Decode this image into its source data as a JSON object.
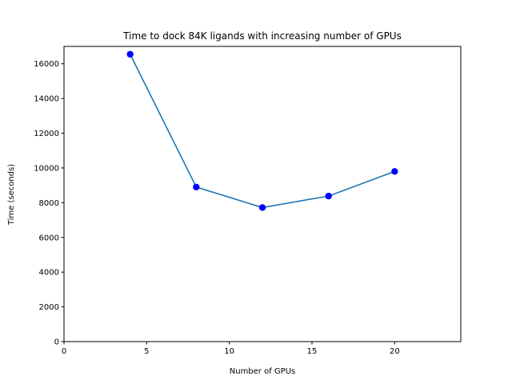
{
  "chart_data": {
    "type": "line",
    "title": "Time to dock 84K ligands with increasing number of GPUs",
    "xlabel": "Number of GPUs",
    "ylabel": "Time (seconds)",
    "xlim": [
      0,
      24
    ],
    "ylim": [
      0,
      17000
    ],
    "xticks": [
      0,
      5,
      10,
      15,
      20
    ],
    "yticks": [
      0,
      2000,
      4000,
      6000,
      8000,
      10000,
      12000,
      14000,
      16000
    ],
    "grid": false,
    "series": [
      {
        "x": [
          4,
          8,
          12,
          16,
          20
        ],
        "y": [
          16550,
          8900,
          7720,
          8380,
          9800
        ],
        "line_color": "#1f77b4",
        "marker_color": "#0000ff"
      }
    ]
  }
}
